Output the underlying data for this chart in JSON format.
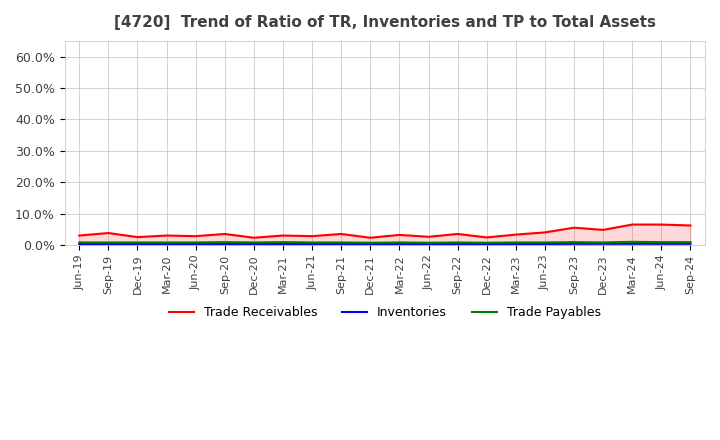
{
  "title": "[4720]  Trend of Ratio of TR, Inventories and TP to Total Assets",
  "title_color": "#404040",
  "background_color": "#ffffff",
  "plot_bg_color": "#ffffff",
  "grid_color": "#c0c0c0",
  "ylim": [
    0.0,
    0.65
  ],
  "yticks": [
    0.0,
    0.1,
    0.2,
    0.3,
    0.4,
    0.5,
    0.6
  ],
  "yticklabels": [
    "0.0%",
    "10.0%",
    "20.0%",
    "30.0%",
    "40.0%",
    "50.0%",
    "60.0%"
  ],
  "x_labels": [
    "Jun-19",
    "Sep-19",
    "Dec-19",
    "Mar-20",
    "Jun-20",
    "Sep-20",
    "Dec-20",
    "Mar-21",
    "Jun-21",
    "Sep-21",
    "Dec-21",
    "Mar-22",
    "Jun-22",
    "Sep-22",
    "Dec-22",
    "Mar-23",
    "Jun-23",
    "Sep-23",
    "Dec-23",
    "Mar-24",
    "Jun-24",
    "Sep-24"
  ],
  "trade_receivables": [
    0.03,
    0.038,
    0.025,
    0.03,
    0.028,
    0.035,
    0.023,
    0.03,
    0.028,
    0.035,
    0.023,
    0.032,
    0.026,
    0.035,
    0.024,
    0.033,
    0.04,
    0.055,
    0.048,
    0.065,
    0.065,
    0.062
  ],
  "inventories": [
    0.003,
    0.003,
    0.003,
    0.003,
    0.003,
    0.003,
    0.003,
    0.003,
    0.003,
    0.003,
    0.003,
    0.003,
    0.003,
    0.003,
    0.003,
    0.003,
    0.003,
    0.004,
    0.004,
    0.004,
    0.004,
    0.004
  ],
  "trade_payables": [
    0.008,
    0.008,
    0.008,
    0.008,
    0.008,
    0.009,
    0.008,
    0.009,
    0.008,
    0.008,
    0.007,
    0.008,
    0.007,
    0.008,
    0.007,
    0.008,
    0.008,
    0.009,
    0.008,
    0.01,
    0.009,
    0.009
  ],
  "line_colors": {
    "trade_receivables": "#ff0000",
    "inventories": "#0000ff",
    "trade_payables": "#008000"
  },
  "line_width": 1.5,
  "legend_labels": [
    "Trade Receivables",
    "Inventories",
    "Trade Payables"
  ],
  "legend_ncol": 3,
  "legend_fontsize": 9
}
